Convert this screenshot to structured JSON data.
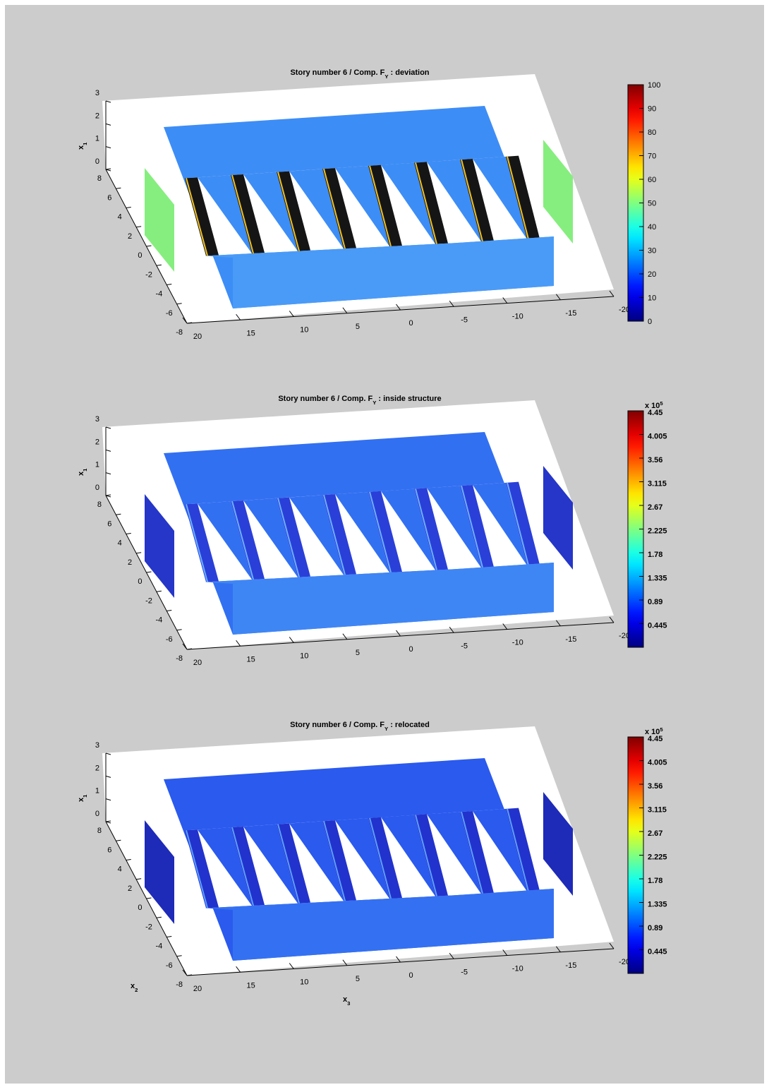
{
  "chart_data": [
    {
      "type": "surface3d",
      "title": {
        "text": "Story number 6 / Comp. F",
        "sub": "Y",
        "suffix": " : deviation"
      },
      "zlabel": {
        "text": "x",
        "sub": "1"
      },
      "xlim": [
        -20,
        20
      ],
      "xticks": [
        20,
        15,
        10,
        5,
        0,
        -5,
        -10,
        -15,
        -20
      ],
      "ylim": [
        -8,
        8
      ],
      "yticks": [
        8,
        6,
        4,
        2,
        0,
        -2,
        -4,
        -6,
        -8
      ],
      "zlim": [
        0,
        3
      ],
      "zticks": [
        3,
        2,
        1,
        0
      ],
      "colormap": "jet",
      "clim": [
        0,
        100
      ],
      "cticks": [
        0,
        10,
        20,
        30,
        40,
        50,
        60,
        70,
        80,
        90,
        100
      ],
      "colors": {
        "blocks": "#3d8df6",
        "front": "#4a9bf7",
        "walls": "#151515",
        "edges": "#f0c020",
        "sides": "#86ee7e"
      }
    },
    {
      "type": "surface3d",
      "title": {
        "text": "Story number 6 / Comp. F",
        "sub": "Y",
        "suffix": " : inside structure"
      },
      "zlabel": {
        "text": "x",
        "sub": "1"
      },
      "xlim": [
        -20,
        20
      ],
      "xticks": [
        20,
        15,
        10,
        5,
        0,
        -5,
        -10,
        -15,
        -20
      ],
      "ylim": [
        -8,
        8
      ],
      "yticks": [
        8,
        6,
        4,
        2,
        0,
        -2,
        -4,
        -6,
        -8
      ],
      "zlim": [
        0,
        3
      ],
      "zticks": [
        3,
        2,
        1,
        0
      ],
      "colormap": "jet",
      "clim": [
        0,
        4.45
      ],
      "cticks": [
        0.445,
        0.89,
        1.335,
        1.78,
        2.225,
        2.67,
        3.115,
        3.56,
        4.005,
        4.45
      ],
      "cmultiplier": {
        "text": "x 10",
        "sup": "5"
      },
      "colors": {
        "blocks": "#3270f2",
        "front": "#3f86f5",
        "walls": "#2a3fd8",
        "edges": "#6ab0ff",
        "sides": "#2536c8"
      }
    },
    {
      "type": "surface3d",
      "title": {
        "text": "Story number 6 / Comp. F",
        "sub": "Y",
        "suffix": " : relocated"
      },
      "xlabel": {
        "text": "x",
        "sub": "3"
      },
      "ylabel": {
        "text": "x",
        "sub": "2"
      },
      "zlabel": {
        "text": "x",
        "sub": "1"
      },
      "xlim": [
        -20,
        20
      ],
      "xticks": [
        20,
        15,
        10,
        5,
        0,
        -5,
        -10,
        -15,
        -20
      ],
      "ylim": [
        -8,
        8
      ],
      "yticks": [
        8,
        6,
        4,
        2,
        0,
        -2,
        -4,
        -6,
        -8
      ],
      "zlim": [
        0,
        3
      ],
      "zticks": [
        3,
        2,
        1,
        0
      ],
      "colormap": "jet",
      "clim": [
        0,
        4.45
      ],
      "cticks": [
        0.445,
        0.89,
        1.335,
        1.78,
        2.225,
        2.67,
        3.115,
        3.56,
        4.005,
        4.45
      ],
      "cmultiplier": {
        "text": "x 10",
        "sup": "5"
      },
      "colors": {
        "blocks": "#2a5aee",
        "front": "#3471f2",
        "walls": "#2232cc",
        "edges": "#5aa0ff",
        "sides": "#1e2ab8"
      }
    }
  ]
}
